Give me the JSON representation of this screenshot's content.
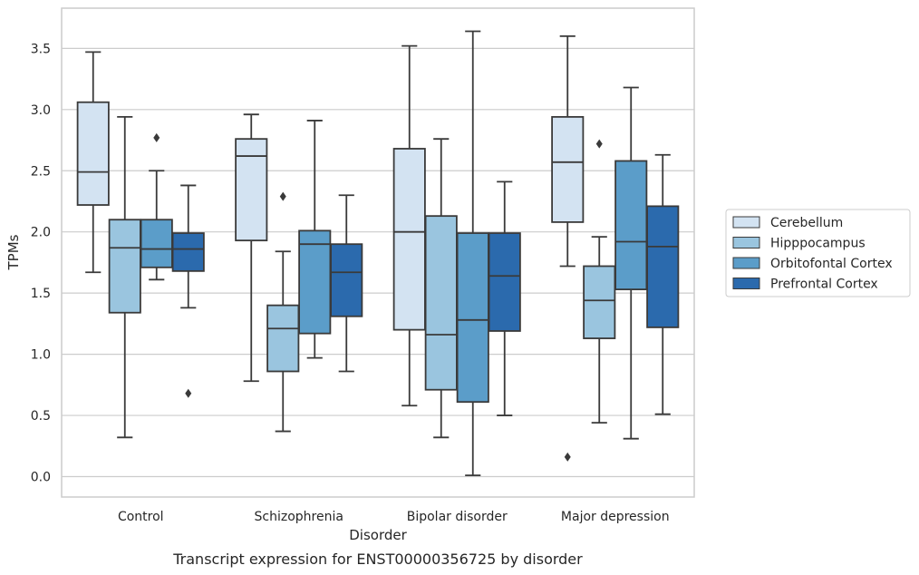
{
  "chart_data": {
    "type": "box",
    "title": "",
    "caption": "Transcript expression for ENST00000356725 by disorder",
    "xlabel": "Disorder",
    "ylabel": "TPMs",
    "ylim": [
      -0.16,
      3.83
    ],
    "yticks": [
      "0.0",
      "0.5",
      "1.0",
      "1.5",
      "2.0",
      "2.5",
      "3.0",
      "3.5"
    ],
    "grid": "horizontal",
    "legend_position": "right",
    "categories": [
      "Control",
      "Schizophrenia",
      "Bipolar disorder",
      "Major depression"
    ],
    "series": [
      {
        "name": "Cerebellum",
        "color": "#d3e3f2",
        "boxes": [
          {
            "min": 1.67,
            "q1": 2.22,
            "median": 2.49,
            "q3": 3.06,
            "max": 3.47,
            "outliers": []
          },
          {
            "min": 0.78,
            "q1": 1.93,
            "median": 2.62,
            "q3": 2.76,
            "max": 2.96,
            "outliers": []
          },
          {
            "min": 0.58,
            "q1": 1.2,
            "median": 2.0,
            "q3": 2.68,
            "max": 3.52,
            "outliers": []
          },
          {
            "min": 1.72,
            "q1": 2.08,
            "median": 2.57,
            "q3": 2.94,
            "max": 3.6,
            "outliers": [
              0.16
            ]
          }
        ]
      },
      {
        "name": "Hipppocampus",
        "color": "#9ac5df",
        "boxes": [
          {
            "min": 0.32,
            "q1": 1.34,
            "median": 1.87,
            "q3": 2.1,
            "max": 2.94,
            "outliers": []
          },
          {
            "min": 0.37,
            "q1": 0.86,
            "median": 1.21,
            "q3": 1.4,
            "max": 1.84,
            "outliers": [
              2.29
            ]
          },
          {
            "min": 0.32,
            "q1": 0.71,
            "median": 1.16,
            "q3": 2.13,
            "max": 2.76,
            "outliers": []
          },
          {
            "min": 0.44,
            "q1": 1.13,
            "median": 1.44,
            "q3": 1.72,
            "max": 1.96,
            "outliers": [
              2.72
            ]
          }
        ]
      },
      {
        "name": "Orbitofontal Cortex",
        "color": "#5b9dc9",
        "boxes": [
          {
            "min": 1.61,
            "q1": 1.71,
            "median": 1.86,
            "q3": 2.1,
            "max": 2.5,
            "outliers": [
              2.77
            ]
          },
          {
            "min": 0.97,
            "q1": 1.17,
            "median": 1.9,
            "q3": 2.01,
            "max": 2.91,
            "outliers": []
          },
          {
            "min": 0.01,
            "q1": 0.61,
            "median": 1.28,
            "q3": 1.99,
            "max": 3.64,
            "outliers": []
          },
          {
            "min": 0.31,
            "q1": 1.53,
            "median": 1.92,
            "q3": 2.58,
            "max": 3.18,
            "outliers": []
          }
        ]
      },
      {
        "name": "Prefrontal Cortex",
        "color": "#2b6aad",
        "boxes": [
          {
            "min": 1.38,
            "q1": 1.68,
            "median": 1.86,
            "q3": 1.99,
            "max": 2.38,
            "outliers": [
              0.68
            ]
          },
          {
            "min": 0.86,
            "q1": 1.31,
            "median": 1.67,
            "q3": 1.9,
            "max": 2.3,
            "outliers": []
          },
          {
            "min": 0.5,
            "q1": 1.19,
            "median": 1.64,
            "q3": 1.99,
            "max": 2.41,
            "outliers": []
          },
          {
            "min": 0.51,
            "q1": 1.22,
            "median": 1.88,
            "q3": 2.21,
            "max": 2.63,
            "outliers": []
          }
        ]
      }
    ]
  }
}
